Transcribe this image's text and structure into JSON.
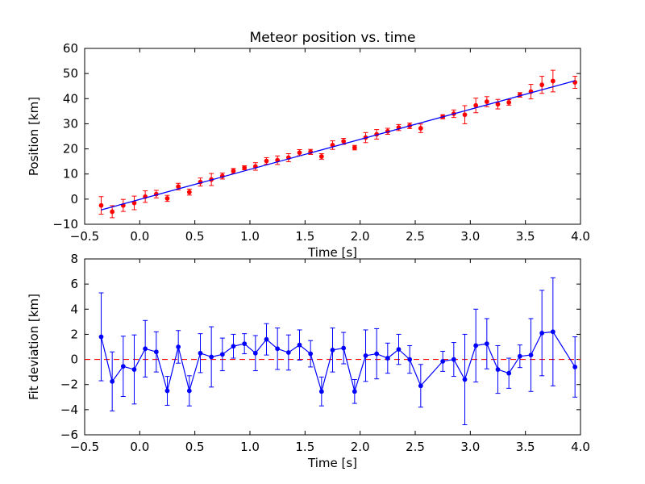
{
  "chart_data": [
    {
      "type": "scatter",
      "title": "Meteor position vs. time",
      "xlabel": "Time [s]",
      "ylabel": "Position [km]",
      "xlim": [
        -0.5,
        4.0
      ],
      "ylim": [
        -10,
        60
      ],
      "xticks": [
        "−0.5",
        "0.0",
        "0.5",
        "1.0",
        "1.5",
        "2.0",
        "2.5",
        "3.0",
        "3.5",
        "4.0"
      ],
      "yticks": [
        "−10",
        "0",
        "10",
        "20",
        "30",
        "40",
        "50",
        "60"
      ],
      "grid": false,
      "colors": {
        "points": "#ff0000",
        "fit": "#0000ff"
      },
      "series": [
        {
          "kind": "points-with-errorbars",
          "x": [
            -0.35,
            -0.25,
            -0.15,
            -0.05,
            0.05,
            0.15,
            0.25,
            0.35,
            0.45,
            0.55,
            0.65,
            0.75,
            0.85,
            0.95,
            1.05,
            1.15,
            1.25,
            1.35,
            1.45,
            1.55,
            1.65,
            1.75,
            1.85,
            1.95,
            2.05,
            2.15,
            2.25,
            2.35,
            2.45,
            2.55,
            2.75,
            2.85,
            2.95,
            3.05,
            3.15,
            3.25,
            3.35,
            3.45,
            3.55,
            3.65,
            3.75,
            3.95
          ],
          "y": [
            -2.5,
            -5.0,
            -2.5,
            -1.5,
            1.0,
            2.0,
            0.3,
            5.0,
            2.8,
            6.8,
            7.8,
            9.2,
            11.2,
            12.5,
            13.0,
            15.2,
            15.5,
            16.5,
            18.5,
            18.8,
            17.0,
            21.5,
            23.0,
            20.5,
            24.5,
            25.8,
            27.0,
            28.5,
            29.2,
            28.2,
            32.8,
            34.0,
            33.6,
            37.3,
            38.8,
            37.8,
            38.5,
            41.5,
            42.8,
            45.5,
            47.0,
            46.5
          ],
          "yerr": [
            3.5,
            2.4,
            2.4,
            2.7,
            2.3,
            1.5,
            1.2,
            1.3,
            1.2,
            1.6,
            2.4,
            1.2,
            1.0,
            0.8,
            1.5,
            1.3,
            1.7,
            1.6,
            1.2,
            1.0,
            1.1,
            1.7,
            1.2,
            0.9,
            2.0,
            1.9,
            1.2,
            1.2,
            1.1,
            1.7,
            0.8,
            1.5,
            3.6,
            2.9,
            2.0,
            1.9,
            1.1,
            0.9,
            2.9,
            3.4,
            4.3,
            2.4
          ]
        },
        {
          "kind": "fit-line",
          "x": [
            -0.35,
            3.95
          ],
          "y": [
            -4.3,
            47.1
          ]
        }
      ]
    },
    {
      "type": "line",
      "title": "",
      "xlabel": "Time [s]",
      "ylabel": "Fit deviation [km]",
      "xlim": [
        -0.5,
        4.0
      ],
      "ylim": [
        -6,
        8
      ],
      "xticks": [
        "−0.5",
        "0.0",
        "0.5",
        "1.0",
        "1.5",
        "2.0",
        "2.5",
        "3.0",
        "3.5",
        "4.0"
      ],
      "yticks": [
        "−6",
        "−4",
        "−2",
        "0",
        "2",
        "4",
        "6",
        "8"
      ],
      "grid": false,
      "reference_line": {
        "y": 0,
        "style": "dashed",
        "color": "#ff0000"
      },
      "colors": {
        "line": "#0000ff"
      },
      "series": [
        {
          "kind": "line-with-errorbars",
          "x": [
            -0.35,
            -0.25,
            -0.15,
            -0.05,
            0.05,
            0.15,
            0.25,
            0.35,
            0.45,
            0.55,
            0.65,
            0.75,
            0.85,
            0.95,
            1.05,
            1.15,
            1.25,
            1.35,
            1.45,
            1.55,
            1.65,
            1.75,
            1.85,
            1.95,
            2.05,
            2.15,
            2.25,
            2.35,
            2.45,
            2.55,
            2.75,
            2.85,
            2.95,
            3.05,
            3.15,
            3.25,
            3.35,
            3.45,
            3.55,
            3.65,
            3.75,
            3.95
          ],
          "y": [
            1.8,
            -1.75,
            -0.55,
            -0.8,
            0.85,
            0.6,
            -2.5,
            1.0,
            -2.5,
            0.5,
            0.2,
            0.4,
            1.05,
            1.25,
            0.5,
            1.6,
            0.85,
            0.55,
            1.15,
            0.45,
            -2.55,
            0.75,
            0.9,
            -2.55,
            0.3,
            0.45,
            0.1,
            0.8,
            0.0,
            -2.1,
            -0.15,
            0.0,
            -1.6,
            1.1,
            1.25,
            -0.8,
            -1.1,
            0.25,
            0.35,
            2.1,
            2.2,
            -0.6
          ],
          "yerr": [
            3.5,
            2.35,
            2.4,
            2.75,
            2.25,
            1.6,
            1.15,
            1.3,
            1.2,
            1.55,
            2.4,
            1.3,
            0.95,
            0.8,
            1.4,
            1.25,
            1.65,
            1.4,
            1.2,
            1.05,
            1.15,
            1.75,
            1.25,
            0.95,
            2.05,
            2.0,
            1.2,
            1.2,
            1.1,
            1.7,
            0.8,
            1.35,
            3.6,
            2.9,
            2.0,
            1.9,
            1.2,
            0.9,
            2.9,
            3.4,
            4.3,
            2.4
          ]
        }
      ]
    }
  ]
}
